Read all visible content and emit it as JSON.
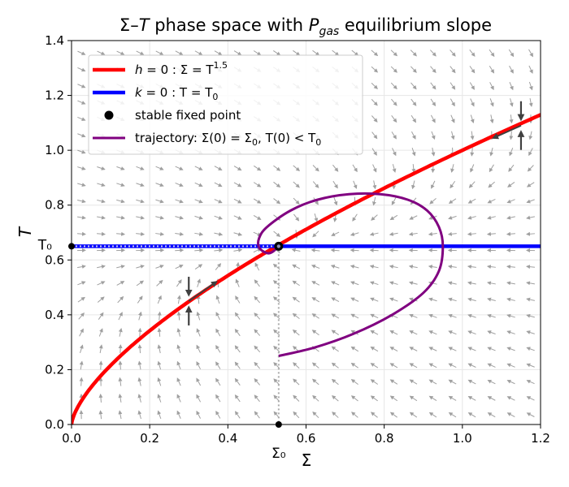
{
  "chart_data": {
    "type": "line",
    "title": "Σ–T phase space with P_gas equilibrium slope",
    "title_parts": {
      "pre": "Σ–",
      "t": "T",
      "mid": " phase space with ",
      "p": "P",
      "sub": "gas",
      "post": " equilibrium slope"
    },
    "xlabel": "Σ",
    "ylabel": "T",
    "xlim": [
      0.0,
      1.2
    ],
    "ylim": [
      0.0,
      1.4
    ],
    "xticks": [
      0.0,
      0.2,
      0.4,
      0.6,
      0.8,
      1.0,
      1.2
    ],
    "yticks": [
      0.0,
      0.2,
      0.4,
      0.6,
      0.8,
      1.0,
      1.2,
      1.4
    ],
    "xtick_labels": [
      "0.0",
      "0.2",
      "0.4",
      "0.6",
      "0.8",
      "1.0",
      "1.2"
    ],
    "ytick_labels": [
      "0.0",
      "0.2",
      "0.4",
      "0.6",
      "0.8",
      "1.0",
      "1.2",
      "1.4"
    ],
    "grid": true,
    "legend_position": "top-left",
    "special_ticks": {
      "x_label": "Σ₀",
      "x_value": 0.53,
      "y_label": "T₀",
      "y_value": 0.65
    },
    "fixed_point": {
      "sigma": 0.53,
      "T": 0.65
    },
    "colors": {
      "h_nullcline": "#ff0000",
      "k_nullcline": "#0000ff",
      "trajectory": "#800080",
      "fixed_point": "#000000",
      "field_arrows": "#a0a0a0",
      "slope_arrows": "#404040",
      "guide_lines": "#aaaaaa"
    },
    "series": [
      {
        "name": "h = 0 : Σ = T^1.5",
        "relation": "Sigma = T^1.5"
      },
      {
        "name": "k = 0 : T = T₀",
        "relation": "T = 0.65"
      },
      {
        "name": "stable fixed point"
      },
      {
        "name": "trajectory: Σ(0) = Σ₀, T(0) < T₀",
        "sigma": [
          0.53,
          0.62,
          0.72,
          0.82,
          0.9,
          0.94,
          0.95,
          0.94,
          0.91,
          0.86,
          0.79,
          0.71,
          0.63,
          0.56,
          0.5,
          0.48,
          0.48,
          0.5,
          0.515,
          0.53
        ],
        "T": [
          0.25,
          0.28,
          0.33,
          0.4,
          0.48,
          0.56,
          0.65,
          0.72,
          0.78,
          0.82,
          0.84,
          0.84,
          0.82,
          0.78,
          0.72,
          0.68,
          0.645,
          0.625,
          0.63,
          0.65
        ]
      }
    ],
    "legend": [
      {
        "pre": "h",
        "post": " = 0 :  Σ = T",
        "sup": "1.5"
      },
      {
        "pre": "k",
        "post": " = 0 :  T = T",
        "sub": "0"
      },
      {
        "text": "stable fixed point"
      },
      {
        "text": "trajectory: Σ(0) = Σ",
        "sub": "0",
        "text2": ",  T(0) < T",
        "sub2": "0"
      }
    ],
    "slope_markers": [
      {
        "sigma": 0.3,
        "T": 0.45
      },
      {
        "sigma": 1.15,
        "T": 1.09
      }
    ]
  }
}
